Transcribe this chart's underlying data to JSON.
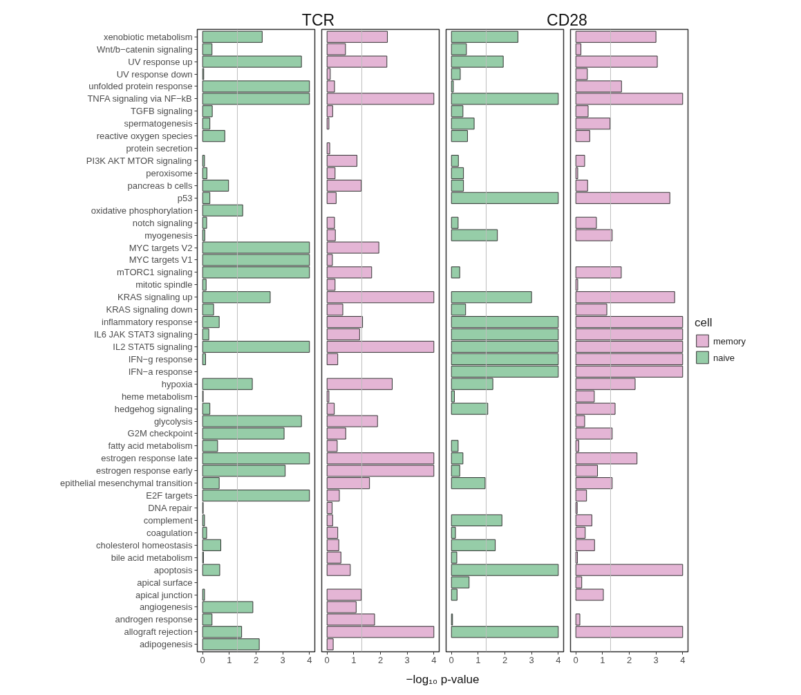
{
  "chart_data": [
    {
      "type": "bar",
      "orientation": "horizontal",
      "title": "TCR",
      "categories": [
        "xenobiotic metabolism",
        "Wnt/b−catenin signaling",
        "UV response up",
        "UV response down",
        "unfolded protein response",
        "TNFA signaling via NF−kB",
        "TGFB signaling",
        "spermatogenesis",
        "reactive oxygen species",
        "protein secretion",
        "PI3K AKT MTOR signaling",
        "peroxisome",
        "pancreas b cells",
        "p53",
        "oxidative phosphorylation",
        "notch signaling",
        "myogenesis",
        "MYC targets V2",
        "MYC targets V1",
        "mTORC1 signaling",
        "mitotic spindle",
        "KRAS signaling up",
        "KRAS signaling down",
        "inflammatory response",
        "IL6 JAK STAT3 signaling",
        "IL2 STAT5 signaling",
        "IFN−g response",
        "IFN−a response",
        "hypoxia",
        "heme metabolism",
        "hedgehog signaling",
        "glycolysis",
        "G2M checkpoint",
        "fatty acid metabolism",
        "estrogen response late",
        "estrogen response early",
        "epithelial mesenchymal transition",
        "E2F targets",
        "DNA repair",
        "complement",
        "coagulation",
        "cholesterol homeostasis",
        "bile acid metabolism",
        "apoptosis",
        "apical surface",
        "apical junction",
        "angiogenesis",
        "androgen response",
        "allograft rejection",
        "adipogenesis"
      ],
      "series": [
        {
          "name": "naive",
          "color": "#96cda8",
          "values": [
            2.23,
            0.35,
            3.7,
            0.04,
            4,
            4,
            0.36,
            0.27,
            0.83,
            null,
            0.07,
            0.16,
            0.97,
            0.27,
            1.5,
            0.15,
            0.08,
            4,
            4,
            4,
            0.13,
            2.53,
            0.41,
            0.62,
            0.23,
            4,
            0.11,
            null,
            1.86,
            0.02,
            0.27,
            3.7,
            3.05,
            0.56,
            4,
            3.09,
            0.62,
            4,
            0.02,
            0.07,
            0.15,
            0.68,
            0.03,
            0.64,
            null,
            0.07,
            1.88,
            0.35,
            1.46,
            2.12
          ]
        }
      ],
      "xlim": [
        -0.2,
        4.2
      ],
      "xticks": [
        0,
        1,
        2,
        3,
        4
      ],
      "ref_lines": [
        {
          "axis": "x",
          "value": 1.3,
          "color": "#bebebe"
        }
      ]
    },
    {
      "type": "bar",
      "orientation": "horizontal",
      "xlabel": "−log₁₀ p-value",
      "tick_labels": "x",
      "categories": [
        "xenobiotic metabolism",
        "Wnt/b−catenin signaling",
        "UV response up",
        "UV response down",
        "unfolded protein response",
        "TNFA signaling via NF−kB",
        "TGFB signaling",
        "spermatogenesis",
        "reactive oxygen species",
        "protein secretion",
        "PI3K AKT MTOR signaling",
        "peroxisome",
        "pancreas b cells",
        "p53",
        "oxidative phosphorylation",
        "notch signaling",
        "myogenesis",
        "MYC targets V2",
        "MYC targets V1",
        "mTORC1 signaling",
        "mitotic spindle",
        "KRAS signaling up",
        "KRAS signaling down",
        "inflammatory response",
        "IL6 JAK STAT3 signaling",
        "IL2 STAT5 signaling",
        "IFN−g response",
        "IFN−a response",
        "hypoxia",
        "heme metabolism",
        "hedgehog signaling",
        "glycolysis",
        "G2M checkpoint",
        "fatty acid metabolism",
        "estrogen response late",
        "estrogen response early",
        "epithelial mesenchymal transition",
        "E2F targets",
        "DNA repair",
        "complement",
        "coagulation",
        "cholesterol homeostasis",
        "bile acid metabolism",
        "apoptosis",
        "apical surface",
        "apical junction",
        "angiogenesis",
        "androgen response",
        "allograft rejection",
        "adipogenesis"
      ],
      "series": [
        {
          "name": "memory",
          "color": "#e4b5d5",
          "values": [
            2.26,
            0.69,
            2.24,
            0.12,
            0.28,
            4,
            0.21,
            0.07,
            null,
            0.1,
            1.12,
            0.3,
            1.28,
            0.34,
            null,
            0.28,
            0.31,
            1.94,
            0.2,
            1.67,
            0.3,
            4,
            0.59,
            1.33,
            1.22,
            4,
            0.4,
            null,
            2.44,
            0.07,
            0.27,
            1.89,
            0.7,
            0.38,
            4,
            4,
            1.59,
            0.46,
            0.19,
            0.21,
            0.4,
            0.44,
            0.52,
            0.87,
            null,
            1.28,
            1.09,
            1.78,
            4,
            0.23
          ]
        }
      ],
      "xlim": [
        -0.2,
        4.2
      ],
      "xticks": [
        0,
        1,
        2,
        3,
        4
      ],
      "ref_lines": [
        {
          "axis": "x",
          "value": 1.3,
          "color": "#bebebe"
        }
      ]
    },
    {
      "type": "bar",
      "orientation": "horizontal",
      "title": "CD28",
      "tick_labels": "x",
      "categories": [
        "xenobiotic metabolism",
        "Wnt/b−catenin signaling",
        "UV response up",
        "UV response down",
        "unfolded protein response",
        "TNFA signaling via NF−kB",
        "TGFB signaling",
        "spermatogenesis",
        "reactive oxygen species",
        "protein secretion",
        "PI3K AKT MTOR signaling",
        "peroxisome",
        "pancreas b cells",
        "p53",
        "oxidative phosphorylation",
        "notch signaling",
        "myogenesis",
        "MYC targets V2",
        "MYC targets V1",
        "mTORC1 signaling",
        "mitotic spindle",
        "KRAS signaling up",
        "KRAS signaling down",
        "inflammatory response",
        "IL6 JAK STAT3 signaling",
        "IL2 STAT5 signaling",
        "IFN−g response",
        "IFN−a response",
        "hypoxia",
        "heme metabolism",
        "hedgehog signaling",
        "glycolysis",
        "G2M checkpoint",
        "fatty acid metabolism",
        "estrogen response late",
        "estrogen response early",
        "epithelial mesenchymal transition",
        "E2F targets",
        "DNA repair",
        "complement",
        "coagulation",
        "cholesterol homeostasis",
        "bile acid metabolism",
        "apoptosis",
        "apical surface",
        "apical junction",
        "angiogenesis",
        "androgen response",
        "allograft rejection",
        "adipogenesis"
      ],
      "series": [
        {
          "name": "naive",
          "color": "#96cda8",
          "values": [
            2.49,
            0.56,
            1.94,
            0.33,
            0.07,
            4,
            0.43,
            0.85,
            0.6,
            null,
            0.26,
            0.45,
            0.45,
            4,
            null,
            0.25,
            1.72,
            null,
            null,
            0.31,
            null,
            3.0,
            0.53,
            4,
            4,
            4,
            4,
            4,
            1.55,
            0.11,
            1.36,
            null,
            null,
            0.25,
            0.43,
            0.31,
            1.26,
            null,
            null,
            1.89,
            0.15,
            1.64,
            0.2,
            4,
            0.66,
            0.21,
            null,
            0.04,
            4,
            null
          ]
        }
      ],
      "xlim": [
        -0.2,
        4.2
      ],
      "xticks": [
        0,
        1,
        2,
        3,
        4
      ],
      "ref_lines": [
        {
          "axis": "x",
          "value": 1.3,
          "color": "#bebebe"
        }
      ]
    },
    {
      "type": "bar",
      "orientation": "horizontal",
      "tick_labels": "x",
      "legend": "right",
      "legend_title": "cell",
      "categories": [
        "xenobiotic metabolism",
        "Wnt/b−catenin signaling",
        "UV response up",
        "UV response down",
        "unfolded protein response",
        "TNFA signaling via NF−kB",
        "TGFB signaling",
        "spermatogenesis",
        "reactive oxygen species",
        "protein secretion",
        "PI3K AKT MTOR signaling",
        "peroxisome",
        "pancreas b cells",
        "p53",
        "oxidative phosphorylation",
        "notch signaling",
        "myogenesis",
        "MYC targets V2",
        "MYC targets V1",
        "mTORC1 signaling",
        "mitotic spindle",
        "KRAS signaling up",
        "KRAS signaling down",
        "inflammatory response",
        "IL6 JAK STAT3 signaling",
        "IL2 STAT5 signaling",
        "IFN−g response",
        "IFN−a response",
        "hypoxia",
        "heme metabolism",
        "hedgehog signaling",
        "glycolysis",
        "G2M checkpoint",
        "fatty acid metabolism",
        "estrogen response late",
        "estrogen response early",
        "epithelial mesenchymal transition",
        "E2F targets",
        "DNA repair",
        "complement",
        "coagulation",
        "cholesterol homeostasis",
        "bile acid metabolism",
        "apoptosis",
        "apical surface",
        "apical junction",
        "angiogenesis",
        "androgen response",
        "allograft rejection",
        "adipogenesis"
      ],
      "series": [
        {
          "name": "memory",
          "color": "#e4b5d5",
          "values": [
            3.0,
            0.19,
            3.05,
            0.43,
            1.71,
            4,
            0.46,
            1.28,
            0.52,
            null,
            0.33,
            0.07,
            0.44,
            3.52,
            null,
            0.77,
            1.36,
            null,
            null,
            1.7,
            0.07,
            3.7,
            1.16,
            4,
            4,
            4,
            4,
            4,
            2.22,
            0.69,
            1.47,
            0.33,
            1.36,
            0.11,
            2.29,
            0.81,
            1.36,
            0.4,
            0.05,
            0.6,
            0.35,
            0.7,
            0.06,
            4,
            0.22,
            1.03,
            null,
            0.15,
            4,
            null
          ]
        }
      ],
      "xlim": [
        -0.2,
        4.2
      ],
      "xticks": [
        0,
        1,
        2,
        3,
        4
      ],
      "ref_lines": [
        {
          "axis": "x",
          "value": 1.3,
          "color": "#bebebe"
        }
      ]
    }
  ]
}
